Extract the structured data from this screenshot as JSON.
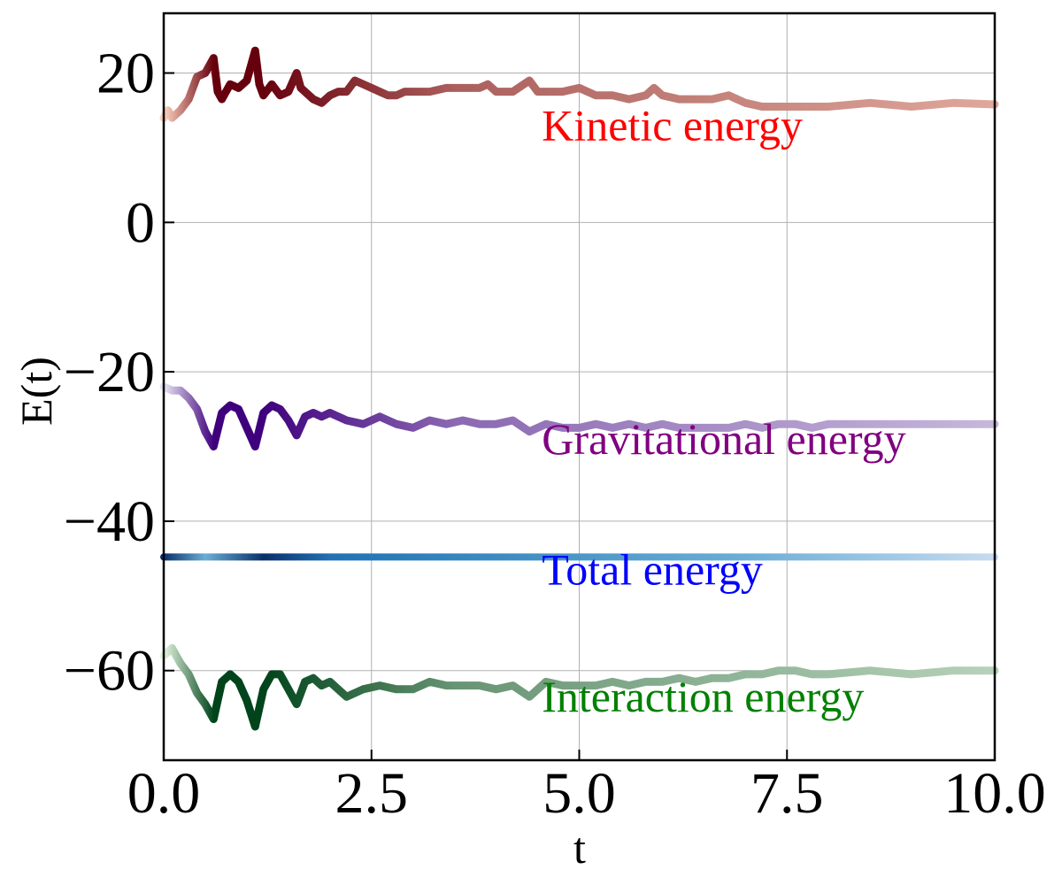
{
  "chart_data": {
    "type": "line",
    "title": "",
    "xlabel": "t",
    "ylabel": "E(t)",
    "xlim": [
      0.0,
      10.0
    ],
    "ylim": [
      -72,
      28
    ],
    "grid": true,
    "x_ticks": [
      0.0,
      2.5,
      5.0,
      7.5,
      10.0
    ],
    "x_tick_labels": [
      "0.0",
      "2.5",
      "5.0",
      "7.5",
      "10.0"
    ],
    "y_ticks": [
      20,
      0,
      -20,
      -40,
      -60
    ],
    "y_tick_labels": [
      "20",
      "0",
      "−20",
      "−40",
      "−60"
    ],
    "series": [
      {
        "name": "Kinetic energy",
        "colormap": "Reds",
        "color_light": "#fdd2bf",
        "color_dark": "#67000d",
        "label_color": "#ff0000",
        "x": [
          0.0,
          0.05,
          0.1,
          0.2,
          0.3,
          0.4,
          0.5,
          0.6,
          0.65,
          0.7,
          0.8,
          0.9,
          1.0,
          1.1,
          1.15,
          1.2,
          1.3,
          1.4,
          1.5,
          1.6,
          1.65,
          1.7,
          1.8,
          1.9,
          2.0,
          2.1,
          2.2,
          2.3,
          2.4,
          2.5,
          2.6,
          2.7,
          2.8,
          2.9,
          3.0,
          3.2,
          3.4,
          3.6,
          3.8,
          3.9,
          4.0,
          4.2,
          4.4,
          4.5,
          4.6,
          4.8,
          5.0,
          5.2,
          5.4,
          5.6,
          5.8,
          5.9,
          6.0,
          6.2,
          6.4,
          6.6,
          6.8,
          6.9,
          7.0,
          7.2,
          7.4,
          7.6,
          7.8,
          8.0,
          8.5,
          9.0,
          9.5,
          10.0
        ],
        "values": [
          14.0,
          15.0,
          14.0,
          15.0,
          16.5,
          19.5,
          20.0,
          22.0,
          17.5,
          16.5,
          18.5,
          18.0,
          19.0,
          23.0,
          18.5,
          17.0,
          18.5,
          17.0,
          17.5,
          20.0,
          18.0,
          17.5,
          16.5,
          16.0,
          17.0,
          17.5,
          17.5,
          19.0,
          18.5,
          18.0,
          17.5,
          17.0,
          17.0,
          17.5,
          17.5,
          17.5,
          18.0,
          18.0,
          18.0,
          18.5,
          17.5,
          17.5,
          19.0,
          17.5,
          17.5,
          17.5,
          18.0,
          17.0,
          17.0,
          16.5,
          17.0,
          18.0,
          17.0,
          16.5,
          16.5,
          16.5,
          17.0,
          16.5,
          16.0,
          15.5,
          15.5,
          15.5,
          15.5,
          15.5,
          16.0,
          15.5,
          16.0,
          15.8
        ]
      },
      {
        "name": "Gravitational energy",
        "colormap": "Purples",
        "color_light": "#e8e6f2",
        "color_dark": "#3f007d",
        "label_color": "#800080",
        "x": [
          0.0,
          0.1,
          0.2,
          0.3,
          0.4,
          0.5,
          0.6,
          0.7,
          0.8,
          0.9,
          1.0,
          1.1,
          1.2,
          1.3,
          1.4,
          1.5,
          1.6,
          1.7,
          1.8,
          1.9,
          2.0,
          2.2,
          2.4,
          2.6,
          2.8,
          3.0,
          3.2,
          3.4,
          3.6,
          3.8,
          4.0,
          4.2,
          4.4,
          4.6,
          4.8,
          5.0,
          5.2,
          5.4,
          5.6,
          5.8,
          6.0,
          6.2,
          6.4,
          6.6,
          6.8,
          7.0,
          7.2,
          7.4,
          7.6,
          7.8,
          8.0,
          8.5,
          9.0,
          9.5,
          10.0
        ],
        "values": [
          -22.0,
          -22.5,
          -22.5,
          -23.5,
          -25.0,
          -28.0,
          -30.0,
          -25.5,
          -24.5,
          -25.0,
          -27.5,
          -30.0,
          -25.5,
          -24.5,
          -25.0,
          -26.5,
          -28.5,
          -26.0,
          -25.5,
          -26.0,
          -25.5,
          -26.5,
          -27.0,
          -26.0,
          -27.0,
          -27.5,
          -26.5,
          -27.0,
          -26.5,
          -27.0,
          -27.0,
          -26.5,
          -28.0,
          -27.0,
          -27.5,
          -27.5,
          -27.0,
          -27.5,
          -27.0,
          -27.5,
          -27.0,
          -27.5,
          -27.5,
          -27.5,
          -27.5,
          -27.0,
          -27.5,
          -27.0,
          -27.0,
          -27.5,
          -27.0,
          -27.0,
          -27.0,
          -27.0,
          -27.0
        ]
      },
      {
        "name": "Total energy",
        "colormap": "Blues",
        "color_light": "#c6dbef",
        "color_dark": "#08306b",
        "label_color": "#0000ff",
        "x": [
          0.0,
          2.5,
          5.0,
          7.5,
          10.0
        ],
        "values": [
          -44.8,
          -44.8,
          -44.8,
          -44.8,
          -44.8
        ]
      },
      {
        "name": "Interaction energy",
        "colormap": "Greens",
        "color_light": "#e5f5e0",
        "color_dark": "#00441b",
        "label_color": "#008000",
        "x": [
          0.0,
          0.1,
          0.2,
          0.3,
          0.4,
          0.5,
          0.6,
          0.7,
          0.8,
          0.9,
          1.0,
          1.1,
          1.2,
          1.3,
          1.4,
          1.5,
          1.6,
          1.7,
          1.8,
          1.9,
          2.0,
          2.2,
          2.4,
          2.6,
          2.8,
          3.0,
          3.2,
          3.4,
          3.6,
          3.8,
          4.0,
          4.2,
          4.4,
          4.6,
          4.8,
          5.0,
          5.2,
          5.4,
          5.6,
          5.8,
          6.0,
          6.2,
          6.4,
          6.6,
          6.8,
          7.0,
          7.2,
          7.4,
          7.6,
          7.8,
          8.0,
          8.5,
          9.0,
          9.5,
          10.0
        ],
        "values": [
          -58.0,
          -57.0,
          -59.0,
          -60.5,
          -63.0,
          -64.5,
          -66.5,
          -61.5,
          -60.5,
          -61.5,
          -64.0,
          -67.5,
          -62.5,
          -60.5,
          -60.5,
          -62.5,
          -64.5,
          -61.5,
          -61.0,
          -62.0,
          -61.5,
          -63.5,
          -62.5,
          -62.0,
          -62.5,
          -62.5,
          -61.5,
          -62.0,
          -62.0,
          -62.0,
          -62.5,
          -62.0,
          -63.5,
          -61.5,
          -62.0,
          -62.0,
          -62.0,
          -61.5,
          -62.0,
          -61.5,
          -61.5,
          -61.0,
          -61.5,
          -61.0,
          -61.0,
          -60.5,
          -60.5,
          -60.0,
          -60.0,
          -60.5,
          -60.5,
          -60.0,
          -60.5,
          -60.0,
          -60.0
        ]
      }
    ],
    "annotations": [
      {
        "text": "Kinetic energy",
        "x": 4.55,
        "y": 11.0,
        "color": "#ff0000"
      },
      {
        "text": "Gravitational energy",
        "x": 4.55,
        "y": -31.0,
        "color": "#800080"
      },
      {
        "text": "Total energy",
        "x": 4.55,
        "y": -48.5,
        "color": "#0000ff"
      },
      {
        "text": "Interaction energy",
        "x": 4.55,
        "y": -65.5,
        "color": "#008000"
      }
    ]
  }
}
